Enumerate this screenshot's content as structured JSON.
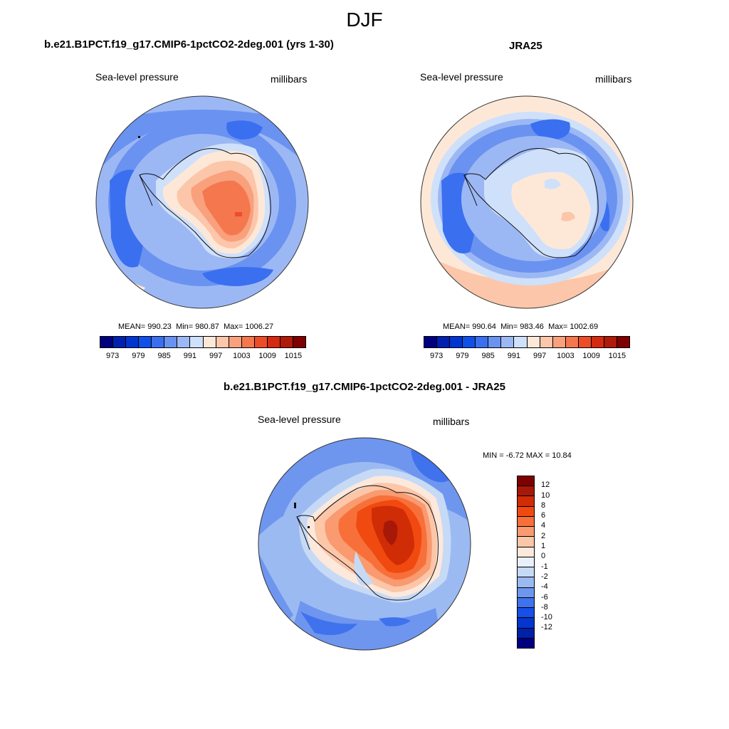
{
  "season": "DJF",
  "panels": {
    "model": {
      "title": "b.e21.B1PCT.f19_g17.CMIP6-1pctCO2-2deg.001 (yrs 1-30)",
      "variable": "Sea-level pressure",
      "units": "millibars",
      "mean_label": "MEAN=",
      "mean": "990.23",
      "min_label": "Min=",
      "min": "980.87",
      "max_label": "Max=",
      "max": "1006.27"
    },
    "obs": {
      "title": "JRA25",
      "variable": "Sea-level pressure",
      "units": "millibars",
      "mean_label": "MEAN=",
      "mean": "990.64",
      "min_label": "Min=",
      "min": "983.46",
      "max_label": "Max=",
      "max": "1002.69"
    },
    "diff": {
      "title": "b.e21.B1PCT.f19_g17.CMIP6-1pctCO2-2deg.001 - JRA25",
      "variable": "Sea-level pressure",
      "units": "millibars",
      "min_label": "MIN =",
      "min": "-6.72",
      "max_label": "MAX =",
      "max": "10.84"
    }
  },
  "abs_colorbar": {
    "colors": [
      "#00007f",
      "#0020b0",
      "#0035d0",
      "#1050e8",
      "#3a6ff0",
      "#6a92f0",
      "#9cb8f4",
      "#cfe0fa",
      "#fde8d8",
      "#fcc6aa",
      "#f9a07c",
      "#f4774e",
      "#ec4d28",
      "#d42a10",
      "#b01a08",
      "#7f0000"
    ],
    "tick_labels": [
      "973",
      "979",
      "985",
      "991",
      "997",
      "1003",
      "1009",
      "1015"
    ]
  },
  "diff_colorbar": {
    "colors": [
      "#7f0000",
      "#a81808",
      "#d02c06",
      "#f04a10",
      "#f7703a",
      "#f99a70",
      "#fcc6a8",
      "#fde8dc",
      "#e8f0fa",
      "#c6daf6",
      "#9cbaf2",
      "#6e96ee",
      "#3f72ec",
      "#1650e6",
      "#0535cc",
      "#0020a8",
      "#000080"
    ],
    "tick_labels": [
      "12",
      "10",
      "8",
      "6",
      "4",
      "2",
      "1",
      "0",
      "-1",
      "-2",
      "-4",
      "-6",
      "-8",
      "-10",
      "-12"
    ]
  },
  "chart_data": [
    {
      "type": "heatmap",
      "title": "b.e21.B1PCT.f19_g17.CMIP6-1pctCO2-2deg.001 (yrs 1-30)",
      "variable": "Sea-level pressure",
      "units": "millibars",
      "projection": "south polar stereographic",
      "contour_levels": [
        973,
        976,
        979,
        982,
        985,
        988,
        991,
        994,
        997,
        1000,
        1003,
        1006,
        1009,
        1012,
        1015
      ],
      "stats": {
        "mean": 990.23,
        "min": 980.87,
        "max": 1006.27
      }
    },
    {
      "type": "heatmap",
      "title": "JRA25",
      "variable": "Sea-level pressure",
      "units": "millibars",
      "projection": "south polar stereographic",
      "contour_levels": [
        973,
        976,
        979,
        982,
        985,
        988,
        991,
        994,
        997,
        1000,
        1003,
        1006,
        1009,
        1012,
        1015
      ],
      "stats": {
        "mean": 990.64,
        "min": 983.46,
        "max": 1002.69
      }
    },
    {
      "type": "heatmap",
      "title": "b.e21.B1PCT.f19_g17.CMIP6-1pctCO2-2deg.001 - JRA25",
      "variable": "Sea-level pressure",
      "units": "millibars",
      "projection": "south polar stereographic",
      "contour_levels": [
        -12,
        -10,
        -8,
        -6,
        -4,
        -2,
        -1,
        0,
        1,
        2,
        4,
        6,
        8,
        10,
        12
      ],
      "stats": {
        "min": -6.72,
        "max": 10.84
      }
    }
  ]
}
